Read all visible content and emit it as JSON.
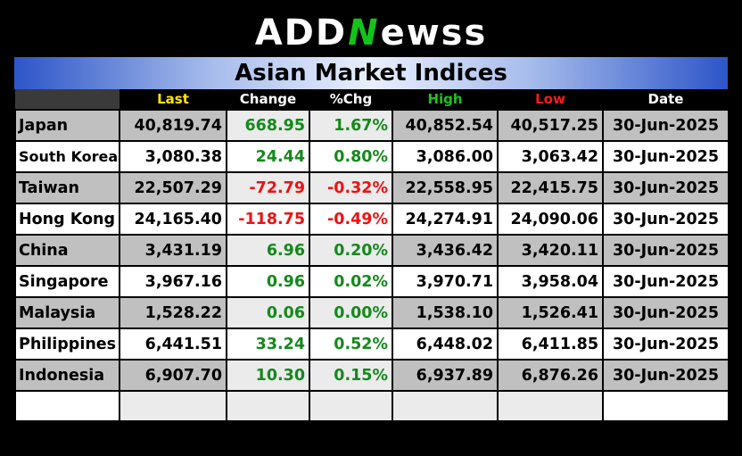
{
  "logo": {
    "part1": "ADD",
    "mark": "N",
    "part2": "ewss"
  },
  "title": "Asian Market Indices",
  "columns": {
    "last": "Last",
    "change": "Change",
    "pct": "%Chg",
    "high": "High",
    "low": "Low",
    "date": "Date"
  },
  "rows": [
    {
      "name": "Japan",
      "last": "40,819.74",
      "change": "668.95",
      "pct": "1.67%",
      "high": "40,852.54",
      "low": "40,517.25",
      "date": "30-Jun-2025"
    },
    {
      "name": "South Korea",
      "last": "3,080.38",
      "change": "24.44",
      "pct": "0.80%",
      "high": "3,086.00",
      "low": "3,063.42",
      "date": "30-Jun-2025"
    },
    {
      "name": "Taiwan",
      "last": "22,507.29",
      "change": "-72.79",
      "pct": "-0.32%",
      "high": "22,558.95",
      "low": "22,415.75",
      "date": "30-Jun-2025"
    },
    {
      "name": "Hong Kong",
      "last": "24,165.40",
      "change": "-118.75",
      "pct": "-0.49%",
      "high": "24,274.91",
      "low": "24,090.06",
      "date": "30-Jun-2025"
    },
    {
      "name": "China",
      "last": "3,431.19",
      "change": "6.96",
      "pct": "0.20%",
      "high": "3,436.42",
      "low": "3,420.11",
      "date": "30-Jun-2025"
    },
    {
      "name": "Singapore",
      "last": "3,967.16",
      "change": "0.96",
      "pct": "0.02%",
      "high": "3,970.71",
      "low": "3,958.04",
      "date": "30-Jun-2025"
    },
    {
      "name": "Malaysia",
      "last": "1,528.22",
      "change": "0.06",
      "pct": "0.00%",
      "high": "1,538.10",
      "low": "1,526.41",
      "date": "30-Jun-2025"
    },
    {
      "name": "Philippines",
      "last": "6,441.51",
      "change": "33.24",
      "pct": "0.52%",
      "high": "6,448.02",
      "low": "6,411.85",
      "date": "30-Jun-2025"
    },
    {
      "name": "Indonesia",
      "last": "6,907.70",
      "change": "10.30",
      "pct": "0.15%",
      "high": "6,937.89",
      "low": "6,876.26",
      "date": "30-Jun-2025"
    }
  ],
  "colors": {
    "positive": "#14891b",
    "negative": "#ee1111",
    "last_header": "#ffe600",
    "high_header": "#1ec31e",
    "low_header": "#ff1a1a",
    "title_gradient_edge": "#2d55c8"
  }
}
